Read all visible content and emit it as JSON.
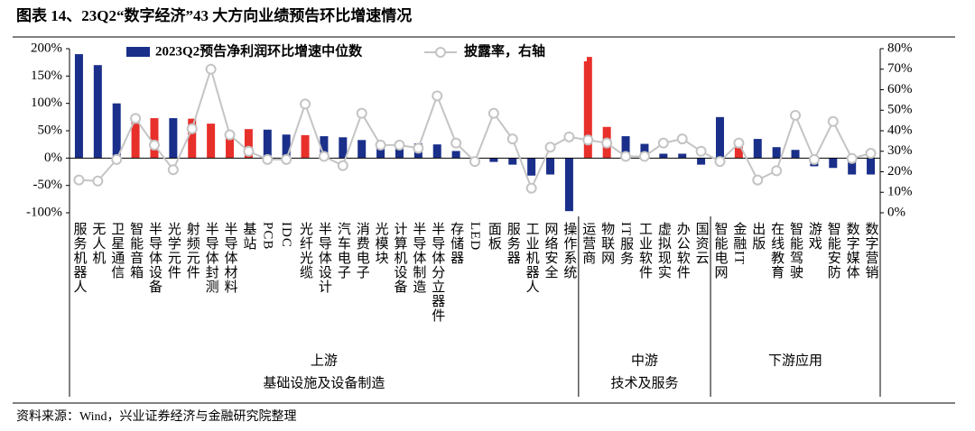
{
  "title": "图表 14、23Q2“数字经济”43 大方向业绩预告环比增速情况",
  "source": "资料来源：Wind，兴业证券经济与金融研究院整理",
  "chart_data": {
    "type": "bar_line",
    "categories": [
      "服务机器人",
      "无人机",
      "卫星通信",
      "智能音箱",
      "半导体设备",
      "光学元件",
      "射频元件",
      "半导体封测",
      "半导体材料",
      "基站",
      "PCB",
      "IDC",
      "光纤光缆",
      "半导体设计",
      "汽车电子",
      "消费电子",
      "光模块",
      "计算机设备",
      "半导体制造",
      "半导体分立器件",
      "存储器",
      "LED",
      "面板",
      "服务器",
      "工业机器人",
      "网络安全",
      "操作系统",
      "运营商",
      "物联网",
      "IT服务",
      "工业软件",
      "虚拟现实",
      "办公软件",
      "国资云",
      "智能电网",
      "金融IT",
      "出版",
      "在线教育",
      "智能驾驶",
      "游戏",
      "智能安防",
      "数字媒体",
      "数字营销"
    ],
    "groups": [
      {
        "name": "上游",
        "label": "基础设施及设备制造",
        "span": 27
      },
      {
        "name": "中游",
        "label": "技术及服务",
        "span": 7
      },
      {
        "name": "下游应用",
        "span": 9
      }
    ],
    "series": [
      {
        "name": "2023Q2预告净利润环比增速中位数",
        "color": "#1a2f8a",
        "colors": [
          "#1a2f8a",
          "#1a2f8a",
          "#1a2f8a",
          "#e8302b",
          "#e8302b",
          "#1a2f8a",
          "#e8302b",
          "#e8302b",
          "#e8302b",
          "#e8302b",
          "#1a2f8a",
          "#1a2f8a",
          "#e8302b",
          "#1a2f8a",
          "#1a2f8a",
          "#1a2f8a",
          "#1a2f8a",
          "#1a2f8a",
          "#1a2f8a",
          "#1a2f8a",
          "#1a2f8a",
          "#1a2f8a",
          "#1a2f8a",
          "#1a2f8a",
          "#1a2f8a",
          "#1a2f8a",
          "#1a2f8a",
          "#e8302b",
          "#e8302b",
          "#1a2f8a",
          "#1a2f8a",
          "#1a2f8a",
          "#1a2f8a",
          "#1a2f8a",
          "#1a2f8a",
          "#e8302b",
          "#1a2f8a",
          "#1a2f8a",
          "#1a2f8a",
          "#1a2f8a",
          "#1a2f8a",
          "#1a2f8a",
          "#1a2f8a"
        ],
        "values": [
          190,
          170,
          100,
          70,
          73,
          73,
          72,
          63,
          42,
          53,
          52,
          43,
          42,
          40,
          38,
          33,
          25,
          30,
          27,
          25,
          13,
          0,
          -7,
          -12,
          -32,
          -30,
          -97,
          185,
          57,
          40,
          26,
          8,
          8,
          -12,
          75,
          22,
          35,
          20,
          15,
          -15,
          -18,
          -30,
          -30
        ]
      },
      {
        "name": "披露率，右轴",
        "color": "#c4c4c4",
        "axis": "y2",
        "values": [
          16,
          15.5,
          26,
          46,
          33,
          21,
          41,
          70,
          38,
          30,
          26,
          26,
          53,
          27.5,
          23,
          48.5,
          33,
          33,
          31.5,
          57,
          34,
          25,
          48.5,
          36,
          12,
          32,
          37,
          35.5,
          34,
          27.5,
          27.5,
          34,
          36,
          30,
          25,
          34,
          16,
          20.5,
          47.5,
          26,
          44.5,
          26.5,
          29
        ]
      }
    ],
    "ylim": [
      -100,
      200
    ],
    "yticks": [
      {
        "value": -100,
        "label": "-100%"
      },
      {
        "value": -50,
        "label": "-50%"
      },
      {
        "value": 0,
        "label": "0%"
      },
      {
        "value": 50,
        "label": "50%"
      },
      {
        "value": 100,
        "label": "100%"
      },
      {
        "value": 150,
        "label": "150%"
      },
      {
        "value": 200,
        "label": "200%"
      }
    ],
    "y2lim": [
      0,
      80
    ],
    "y2ticks": [
      {
        "value": 0,
        "label": "0%"
      },
      {
        "value": 10,
        "label": "10%"
      },
      {
        "value": 20,
        "label": "20%"
      },
      {
        "value": 30,
        "label": "30%"
      },
      {
        "value": 40,
        "label": "40%"
      },
      {
        "value": 50,
        "label": "50%"
      },
      {
        "value": 60,
        "label": "60%"
      },
      {
        "value": 70,
        "label": "70%"
      },
      {
        "value": 80,
        "label": "80%"
      }
    ]
  }
}
